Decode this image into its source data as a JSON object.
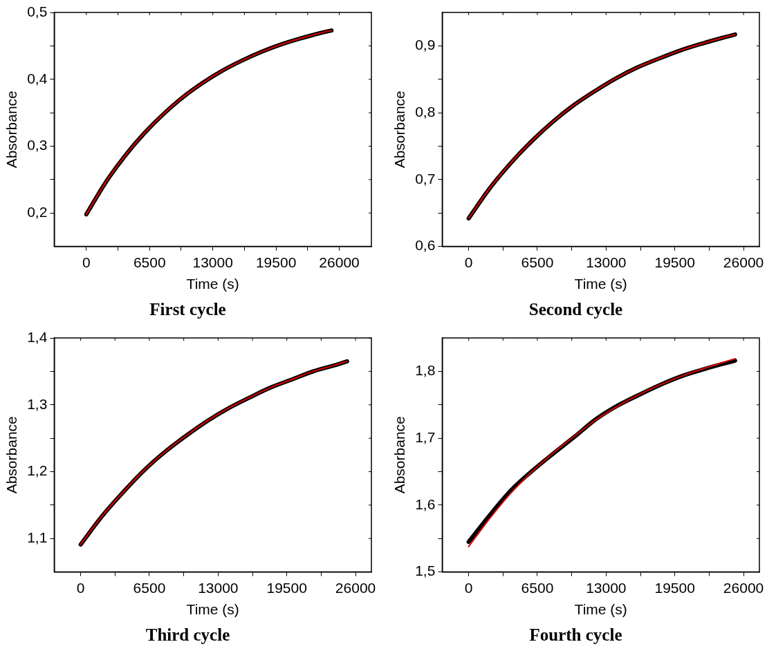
{
  "chart_data": [
    {
      "type": "line",
      "title": "First cycle",
      "xlabel": "Time (s)",
      "ylabel": "Absorbance",
      "marker": "none",
      "line_style": "solid",
      "legend": false,
      "x": [
        0,
        2000,
        4000,
        6000,
        8000,
        10000,
        12000,
        14000,
        16000,
        18000,
        20000,
        22000,
        24000,
        25200
      ],
      "series": [
        {
          "color": "#000000",
          "values": [
            0.198,
            0.246,
            0.286,
            0.32,
            0.349,
            0.374,
            0.395,
            0.413,
            0.428,
            0.441,
            0.452,
            0.461,
            0.469,
            0.473
          ]
        },
        {
          "color": "#e00000",
          "values": [
            0.198,
            0.246,
            0.286,
            0.32,
            0.349,
            0.374,
            0.395,
            0.413,
            0.428,
            0.441,
            0.452,
            0.461,
            0.469,
            0.473
          ]
        }
      ],
      "xlim": [
        -3300,
        29300
      ],
      "xticks": [
        0,
        {
          "value": 3250,
          "label": null
        },
        6500,
        {
          "value": 9750,
          "label": null
        },
        13000,
        {
          "value": 16250,
          "label": null
        },
        19500,
        {
          "value": 22750,
          "label": null
        },
        26000
      ],
      "ylim": [
        0.15,
        0.5
      ],
      "yticks": [
        {
          "value": 0.2,
          "label": "0,2"
        },
        {
          "value": 0.25,
          "label": null
        },
        {
          "value": 0.3,
          "label": "0,3"
        },
        {
          "value": 0.35,
          "label": null
        },
        {
          "value": 0.4,
          "label": "0,4"
        },
        {
          "value": 0.45,
          "label": null
        },
        {
          "value": 0.5,
          "label": "0,5"
        }
      ]
    },
    {
      "type": "line",
      "title": "Second cycle",
      "xlabel": "Time (s)",
      "ylabel": "Absorbance",
      "marker": "none",
      "line_style": "solid",
      "legend": false,
      "x": [
        0,
        2000,
        4000,
        6000,
        8000,
        10000,
        12000,
        14000,
        16000,
        18000,
        20000,
        22000,
        24000,
        25200
      ],
      "series": [
        {
          "color": "#000000",
          "values": [
            0.642,
            0.687,
            0.725,
            0.758,
            0.787,
            0.812,
            0.833,
            0.852,
            0.868,
            0.881,
            0.893,
            0.903,
            0.912,
            0.917
          ]
        },
        {
          "color": "#e00000",
          "values": [
            0.642,
            0.687,
            0.725,
            0.758,
            0.787,
            0.812,
            0.833,
            0.852,
            0.868,
            0.881,
            0.893,
            0.903,
            0.912,
            0.917
          ]
        }
      ],
      "xlim": [
        -2500,
        27500
      ],
      "xticks": [
        0,
        {
          "value": 3250,
          "label": null
        },
        6500,
        {
          "value": 9750,
          "label": null
        },
        13000,
        {
          "value": 16250,
          "label": null
        },
        19500,
        {
          "value": 22750,
          "label": null
        },
        26000
      ],
      "ylim": [
        0.6,
        0.95
      ],
      "yticks": [
        {
          "value": 0.6,
          "label": "0,6"
        },
        {
          "value": 0.65,
          "label": null
        },
        {
          "value": 0.7,
          "label": "0,7"
        },
        {
          "value": 0.75,
          "label": null
        },
        {
          "value": 0.8,
          "label": "0,8"
        },
        {
          "value": 0.85,
          "label": null
        },
        {
          "value": 0.9,
          "label": "0,9"
        }
      ]
    },
    {
      "type": "line",
      "title": "Third cycle",
      "xlabel": "Time (s)",
      "ylabel": "Absorbance",
      "marker": "none",
      "line_style": "solid",
      "legend": false,
      "x": [
        0,
        2000,
        4000,
        6000,
        8000,
        10000,
        12000,
        14000,
        16000,
        18000,
        20000,
        22000,
        24000,
        25200
      ],
      "series": [
        {
          "color": "#000000",
          "values": [
            1.091,
            1.133,
            1.169,
            1.202,
            1.23,
            1.254,
            1.276,
            1.295,
            1.311,
            1.326,
            1.338,
            1.35,
            1.359,
            1.365
          ]
        },
        {
          "color": "#e00000",
          "values": [
            1.091,
            1.133,
            1.169,
            1.202,
            1.23,
            1.254,
            1.276,
            1.295,
            1.311,
            1.326,
            1.338,
            1.35,
            1.359,
            1.365
          ]
        }
      ],
      "xlim": [
        -2500,
        27500
      ],
      "xticks": [
        0,
        {
          "value": 3250,
          "label": null
        },
        6500,
        {
          "value": 9750,
          "label": null
        },
        13000,
        {
          "value": 16250,
          "label": null
        },
        19500,
        {
          "value": 22750,
          "label": null
        },
        26000
      ],
      "ylim": [
        1.05,
        1.4
      ],
      "yticks": [
        {
          "value": 1.1,
          "label": "1,1"
        },
        {
          "value": 1.15,
          "label": null
        },
        {
          "value": 1.2,
          "label": "1,2"
        },
        {
          "value": 1.25,
          "label": null
        },
        {
          "value": 1.3,
          "label": "1,3"
        },
        {
          "value": 1.35,
          "label": null
        },
        {
          "value": 1.4,
          "label": "1,4"
        }
      ]
    },
    {
      "type": "line",
      "title": "Fourth cycle",
      "xlabel": "Time (s)",
      "ylabel": "Absorbance",
      "marker": "none",
      "line_style": "solid",
      "legend": false,
      "x": [
        0,
        2000,
        4000,
        6000,
        8000,
        10000,
        12000,
        14000,
        16000,
        18000,
        20000,
        22000,
        24000,
        25200
      ],
      "series": [
        {
          "color": "#000000",
          "values": [
            1.545,
            1.585,
            1.622,
            1.651,
            1.677,
            1.702,
            1.728,
            1.748,
            1.764,
            1.779,
            1.792,
            1.802,
            1.811,
            1.816
          ]
        },
        {
          "color": "#e00000",
          "values": [
            1.538,
            1.58,
            1.618,
            1.65,
            1.678,
            1.703,
            1.727,
            1.747,
            1.764,
            1.779,
            1.792,
            1.803,
            1.813,
            1.819
          ]
        }
      ],
      "xlim": [
        -2500,
        27500
      ],
      "xticks": [
        0,
        {
          "value": 3250,
          "label": null
        },
        6500,
        {
          "value": 9750,
          "label": null
        },
        13000,
        {
          "value": 16250,
          "label": null
        },
        19500,
        {
          "value": 22750,
          "label": null
        },
        26000
      ],
      "ylim": [
        1.5,
        1.85
      ],
      "yticks": [
        {
          "value": 1.5,
          "label": "1,5"
        },
        {
          "value": 1.55,
          "label": null
        },
        {
          "value": 1.6,
          "label": "1,6"
        },
        {
          "value": 1.65,
          "label": null
        },
        {
          "value": 1.7,
          "label": "1,7"
        },
        {
          "value": 1.75,
          "label": null
        },
        {
          "value": 1.8,
          "label": "1,8"
        }
      ]
    }
  ]
}
